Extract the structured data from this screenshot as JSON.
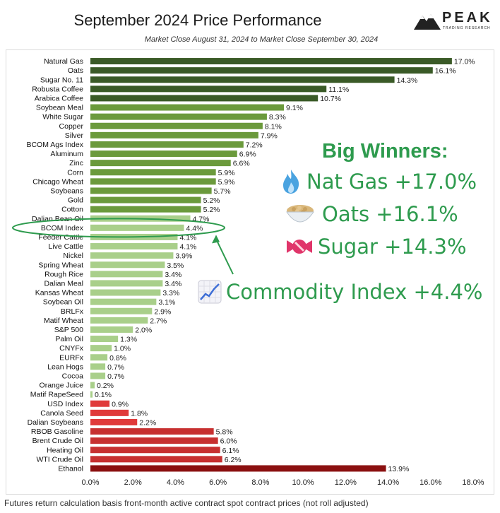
{
  "header": {
    "title": "September 2024 Price Performance",
    "subtitle": "Market Close August 31, 2024 to Market Close September 30, 2024"
  },
  "logo": {
    "word": "PEAK",
    "sub": "TRADING RESEARCH"
  },
  "footnote": "Futures return calculation basis front-month active contract spot contract prices (not roll adjusted)",
  "callouts": {
    "heading": "Big Winners:",
    "natgas": "Nat Gas +17.0%",
    "oats": "Oats +16.1%",
    "sugar": "Sugar +14.3%",
    "index": "Commodity Index +4.4%",
    "icons": [
      "flame-icon",
      "oats-bowl-icon",
      "candy-icon",
      "chart-increasing-icon"
    ]
  },
  "colors": {
    "dark_green": "#3a5a27",
    "mid_green": "#6b9a3c",
    "light_green": "#a9cf8a",
    "red": "#e03a3a",
    "dark_red": "#c73030",
    "ethanol": "#8b1010",
    "callout_green": "#2e9b4e"
  },
  "chart_data": {
    "type": "bar",
    "orientation": "horizontal",
    "title": "September 2024 Price Performance",
    "subtitle": "Market Close August 31, 2024 to Market Close September 30, 2024",
    "xlim": [
      0,
      18
    ],
    "x_ticks": [
      "0.0%",
      "2.0%",
      "4.0%",
      "6.0%",
      "8.0%",
      "10.0%",
      "12.0%",
      "14.0%",
      "16.0%",
      "18.0%"
    ],
    "categories": [
      "Natural Gas",
      "Oats",
      "Sugar No. 11",
      "Robusta Coffee",
      "Arabica Coffee",
      "Soybean Meal",
      "White Sugar",
      "Copper",
      "Silver",
      "BCOM Ags Index",
      "Aluminum",
      "Zinc",
      "Corn",
      "Chicago Wheat",
      "Soybeans",
      "Gold",
      "Cotton",
      "Dalian Bean Oil",
      "BCOM Index",
      "Feeder Cattle",
      "Live Cattle",
      "Nickel",
      "Spring Wheat",
      "Rough Rice",
      "Dalian Meal",
      "Kansas Wheat",
      "Soybean Oil",
      "BRLFx",
      "Matif Wheat",
      "S&P 500",
      "Palm Oil",
      "CNYFx",
      "EURFx",
      "Lean Hogs",
      "Cocoa",
      "Orange Juice",
      "Matif RapeSeed",
      "USD Index",
      "Canola Seed",
      "Dalian Soybeans",
      "RBOB Gasoline",
      "Brent Crude Oil",
      "Heating Oil",
      "WTI Crude Oil",
      "Ethanol"
    ],
    "values": [
      17.0,
      16.1,
      14.3,
      11.1,
      10.7,
      9.1,
      8.3,
      8.1,
      7.9,
      7.2,
      6.9,
      6.6,
      5.9,
      5.9,
      5.7,
      5.2,
      5.2,
      4.7,
      4.4,
      4.1,
      4.1,
      3.9,
      3.5,
      3.4,
      3.4,
      3.3,
      3.1,
      2.9,
      2.7,
      2.0,
      1.3,
      1.0,
      0.8,
      0.7,
      0.7,
      0.2,
      0.1,
      0.9,
      1.8,
      2.2,
      5.8,
      6.0,
      6.1,
      6.2,
      13.9
    ],
    "labels": [
      "17.0%",
      "16.1%",
      "14.3%",
      "11.1%",
      "10.7%",
      "9.1%",
      "8.3%",
      "8.1%",
      "7.9%",
      "7.2%",
      "6.9%",
      "6.6%",
      "5.9%",
      "5.9%",
      "5.7%",
      "5.2%",
      "5.2%",
      "4.7%",
      "4.4%",
      "4.1%",
      "4.1%",
      "3.9%",
      "3.5%",
      "3.4%",
      "3.4%",
      "3.3%",
      "3.1%",
      "2.9%",
      "2.7%",
      "2.0%",
      "1.3%",
      "1.0%",
      "0.8%",
      "0.7%",
      "0.7%",
      "0.2%",
      "0.1%",
      "0.9%",
      "1.8%",
      "2.2%",
      "5.8%",
      "6.0%",
      "6.1%",
      "6.2%",
      "13.9%"
    ],
    "bar_colors": [
      "#3a5a27",
      "#3a5a27",
      "#3a5a27",
      "#3a5a27",
      "#3a5a27",
      "#6b9a3c",
      "#6b9a3c",
      "#6b9a3c",
      "#6b9a3c",
      "#6b9a3c",
      "#6b9a3c",
      "#6b9a3c",
      "#6b9a3c",
      "#6b9a3c",
      "#6b9a3c",
      "#6b9a3c",
      "#6b9a3c",
      "#a9cf8a",
      "#a9cf8a",
      "#a9cf8a",
      "#a9cf8a",
      "#a9cf8a",
      "#a9cf8a",
      "#a9cf8a",
      "#a9cf8a",
      "#a9cf8a",
      "#a9cf8a",
      "#a9cf8a",
      "#a9cf8a",
      "#a9cf8a",
      "#a9cf8a",
      "#a9cf8a",
      "#a9cf8a",
      "#a9cf8a",
      "#a9cf8a",
      "#a9cf8a",
      "#a9cf8a",
      "#e03a3a",
      "#e03a3a",
      "#e03a3a",
      "#c73030",
      "#c73030",
      "#c73030",
      "#c73030",
      "#8b1010"
    ],
    "highlighted_category": "BCOM Index",
    "grid": false
  }
}
